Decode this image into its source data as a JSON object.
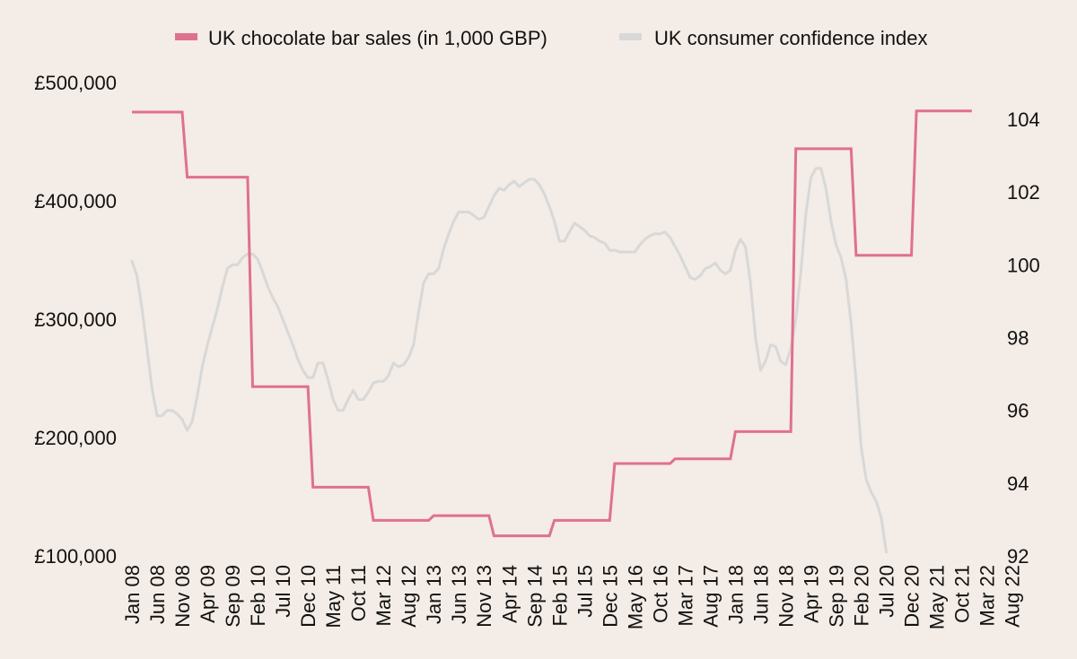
{
  "chart_data": {
    "type": "line",
    "title": "",
    "legend_position": "top-center",
    "grid": false,
    "x_range": [
      "Jan 08",
      "Aug 22"
    ],
    "x_tick_labels": [
      "Jan 08",
      "Jun 08",
      "Nov 08",
      "Apr 09",
      "Sep 09",
      "Feb 10",
      "Jul 10",
      "Dec 10",
      "May 11",
      "Oct 11",
      "Mar 12",
      "Aug 12",
      "Jan 13",
      "Jun 13",
      "Nov 13",
      "Apr 14",
      "Sep 14",
      "Feb 15",
      "Jul 15",
      "Dec 15",
      "May 16",
      "Oct 16",
      "Mar 17",
      "Aug 17",
      "Jan 18",
      "Jun 18",
      "Nov 18",
      "Apr 19",
      "Sep 19",
      "Feb 20",
      "Jul 20",
      "Dec 20",
      "May 21",
      "Oct 21",
      "Mar 22",
      "Aug 22"
    ],
    "y_left": {
      "label": "",
      "range": [
        100000,
        500000
      ],
      "ticks": [
        100000,
        200000,
        300000,
        400000,
        500000
      ],
      "tick_labels": [
        "£100,000",
        "£200,000",
        "£300,000",
        "£400,000",
        "£500,000"
      ]
    },
    "y_right": {
      "label": "",
      "range": [
        92,
        105
      ],
      "ticks": [
        92,
        94,
        96,
        98,
        100,
        102,
        104
      ],
      "tick_labels": [
        "92",
        "94",
        "96",
        "98",
        "100",
        "102",
        "104"
      ]
    },
    "series": [
      {
        "name": "UK chocolate bar sales (in 1,000 GBP)",
        "axis": "left",
        "color": "#e07090",
        "shape": "step",
        "points": [
          {
            "x": 0,
            "y": 475000
          },
          {
            "x": 10,
            "y": 475000
          },
          {
            "x": 11,
            "y": 420000
          },
          {
            "x": 23,
            "y": 420000
          },
          {
            "x": 24,
            "y": 243000
          },
          {
            "x": 35,
            "y": 243000
          },
          {
            "x": 36,
            "y": 158000
          },
          {
            "x": 47,
            "y": 158000
          },
          {
            "x": 48,
            "y": 130000
          },
          {
            "x": 59,
            "y": 130000
          },
          {
            "x": 60,
            "y": 134000
          },
          {
            "x": 71,
            "y": 134000
          },
          {
            "x": 72,
            "y": 117000
          },
          {
            "x": 83,
            "y": 117000
          },
          {
            "x": 84,
            "y": 130000
          },
          {
            "x": 95,
            "y": 130000
          },
          {
            "x": 96,
            "y": 178000
          },
          {
            "x": 107,
            "y": 178000
          },
          {
            "x": 108,
            "y": 182000
          },
          {
            "x": 119,
            "y": 182000
          },
          {
            "x": 120,
            "y": 205000
          },
          {
            "x": 131,
            "y": 205000
          },
          {
            "x": 132,
            "y": 444000
          },
          {
            "x": 143,
            "y": 444000
          },
          {
            "x": 144,
            "y": 354000
          },
          {
            "x": 155,
            "y": 354000
          },
          {
            "x": 156,
            "y": 476000
          },
          {
            "x": 167,
            "y": 476000
          }
        ]
      },
      {
        "name": "UK consumer confidence index",
        "axis": "right",
        "color": "#d8d8d8",
        "shape": "line",
        "points": [
          {
            "x": 0,
            "y": 100.1
          },
          {
            "x": 1,
            "y": 99.7
          },
          {
            "x": 2,
            "y": 98.8
          },
          {
            "x": 3,
            "y": 97.7
          },
          {
            "x": 4,
            "y": 96.6
          },
          {
            "x": 5,
            "y": 95.85
          },
          {
            "x": 6,
            "y": 95.85
          },
          {
            "x": 7,
            "y": 96.0
          },
          {
            "x": 8,
            "y": 96.0
          },
          {
            "x": 9,
            "y": 95.9
          },
          {
            "x": 10,
            "y": 95.75
          },
          {
            "x": 11,
            "y": 95.45
          },
          {
            "x": 12,
            "y": 95.7
          },
          {
            "x": 13,
            "y": 96.4
          },
          {
            "x": 14,
            "y": 97.2
          },
          {
            "x": 15,
            "y": 97.8
          },
          {
            "x": 16,
            "y": 98.3
          },
          {
            "x": 17,
            "y": 98.8
          },
          {
            "x": 18,
            "y": 99.4
          },
          {
            "x": 19,
            "y": 99.9
          },
          {
            "x": 20,
            "y": 100.0
          },
          {
            "x": 21,
            "y": 100.0
          },
          {
            "x": 22,
            "y": 100.2
          },
          {
            "x": 23,
            "y": 100.3
          },
          {
            "x": 24,
            "y": 100.3
          },
          {
            "x": 25,
            "y": 100.15
          },
          {
            "x": 26,
            "y": 99.8
          },
          {
            "x": 27,
            "y": 99.4
          },
          {
            "x": 28,
            "y": 99.1
          },
          {
            "x": 29,
            "y": 98.85
          },
          {
            "x": 30,
            "y": 98.5
          },
          {
            "x": 31,
            "y": 98.15
          },
          {
            "x": 32,
            "y": 97.8
          },
          {
            "x": 33,
            "y": 97.4
          },
          {
            "x": 34,
            "y": 97.1
          },
          {
            "x": 35,
            "y": 96.9
          },
          {
            "x": 36,
            "y": 96.9
          },
          {
            "x": 37,
            "y": 97.3
          },
          {
            "x": 38,
            "y": 97.3
          },
          {
            "x": 39,
            "y": 96.85
          },
          {
            "x": 40,
            "y": 96.3
          },
          {
            "x": 41,
            "y": 96.0
          },
          {
            "x": 42,
            "y": 96.0
          },
          {
            "x": 43,
            "y": 96.3
          },
          {
            "x": 44,
            "y": 96.55
          },
          {
            "x": 45,
            "y": 96.3
          },
          {
            "x": 46,
            "y": 96.3
          },
          {
            "x": 47,
            "y": 96.5
          },
          {
            "x": 48,
            "y": 96.75
          },
          {
            "x": 49,
            "y": 96.8
          },
          {
            "x": 50,
            "y": 96.8
          },
          {
            "x": 51,
            "y": 96.95
          },
          {
            "x": 52,
            "y": 97.3
          },
          {
            "x": 53,
            "y": 97.2
          },
          {
            "x": 54,
            "y": 97.25
          },
          {
            "x": 55,
            "y": 97.45
          },
          {
            "x": 56,
            "y": 97.8
          },
          {
            "x": 57,
            "y": 98.7
          },
          {
            "x": 58,
            "y": 99.5
          },
          {
            "x": 59,
            "y": 99.75
          },
          {
            "x": 60,
            "y": 99.75
          },
          {
            "x": 61,
            "y": 99.9
          },
          {
            "x": 62,
            "y": 100.45
          },
          {
            "x": 63,
            "y": 100.85
          },
          {
            "x": 64,
            "y": 101.2
          },
          {
            "x": 65,
            "y": 101.45
          },
          {
            "x": 66,
            "y": 101.45
          },
          {
            "x": 67,
            "y": 101.45
          },
          {
            "x": 68,
            "y": 101.35
          },
          {
            "x": 69,
            "y": 101.25
          },
          {
            "x": 70,
            "y": 101.3
          },
          {
            "x": 71,
            "y": 101.6
          },
          {
            "x": 72,
            "y": 101.9
          },
          {
            "x": 73,
            "y": 102.1
          },
          {
            "x": 74,
            "y": 102.05
          },
          {
            "x": 75,
            "y": 102.2
          },
          {
            "x": 76,
            "y": 102.3
          },
          {
            "x": 77,
            "y": 102.15
          },
          {
            "x": 78,
            "y": 102.25
          },
          {
            "x": 79,
            "y": 102.35
          },
          {
            "x": 80,
            "y": 102.35
          },
          {
            "x": 81,
            "y": 102.2
          },
          {
            "x": 82,
            "y": 101.95
          },
          {
            "x": 83,
            "y": 101.6
          },
          {
            "x": 84,
            "y": 101.2
          },
          {
            "x": 85,
            "y": 100.65
          },
          {
            "x": 86,
            "y": 100.65
          },
          {
            "x": 87,
            "y": 100.9
          },
          {
            "x": 88,
            "y": 101.15
          },
          {
            "x": 89,
            "y": 101.05
          },
          {
            "x": 90,
            "y": 100.95
          },
          {
            "x": 91,
            "y": 100.8
          },
          {
            "x": 92,
            "y": 100.75
          },
          {
            "x": 93,
            "y": 100.65
          },
          {
            "x": 94,
            "y": 100.6
          },
          {
            "x": 95,
            "y": 100.4
          },
          {
            "x": 96,
            "y": 100.4
          },
          {
            "x": 97,
            "y": 100.35
          },
          {
            "x": 98,
            "y": 100.35
          },
          {
            "x": 99,
            "y": 100.35
          },
          {
            "x": 100,
            "y": 100.35
          },
          {
            "x": 101,
            "y": 100.55
          },
          {
            "x": 102,
            "y": 100.7
          },
          {
            "x": 103,
            "y": 100.8
          },
          {
            "x": 104,
            "y": 100.85
          },
          {
            "x": 105,
            "y": 100.85
          },
          {
            "x": 106,
            "y": 100.9
          },
          {
            "x": 107,
            "y": 100.75
          },
          {
            "x": 108,
            "y": 100.5
          },
          {
            "x": 109,
            "y": 100.25
          },
          {
            "x": 110,
            "y": 99.95
          },
          {
            "x": 111,
            "y": 99.65
          },
          {
            "x": 112,
            "y": 99.6
          },
          {
            "x": 113,
            "y": 99.7
          },
          {
            "x": 114,
            "y": 99.9
          },
          {
            "x": 115,
            "y": 99.95
          },
          {
            "x": 116,
            "y": 100.05
          },
          {
            "x": 117,
            "y": 99.85
          },
          {
            "x": 118,
            "y": 99.75
          },
          {
            "x": 119,
            "y": 99.85
          },
          {
            "x": 120,
            "y": 100.4
          },
          {
            "x": 121,
            "y": 100.7
          },
          {
            "x": 122,
            "y": 100.5
          },
          {
            "x": 123,
            "y": 99.5
          },
          {
            "x": 124,
            "y": 98.0
          },
          {
            "x": 125,
            "y": 97.1
          },
          {
            "x": 126,
            "y": 97.35
          },
          {
            "x": 127,
            "y": 97.8
          },
          {
            "x": 128,
            "y": 97.75
          },
          {
            "x": 129,
            "y": 97.35
          },
          {
            "x": 130,
            "y": 97.25
          },
          {
            "x": 131,
            "y": 97.7
          },
          {
            "x": 132,
            "y": 98.5
          },
          {
            "x": 133,
            "y": 99.8
          },
          {
            "x": 134,
            "y": 101.4
          },
          {
            "x": 135,
            "y": 102.4
          },
          {
            "x": 136,
            "y": 102.65
          },
          {
            "x": 137,
            "y": 102.65
          },
          {
            "x": 138,
            "y": 102.1
          },
          {
            "x": 139,
            "y": 101.2
          },
          {
            "x": 140,
            "y": 100.55
          },
          {
            "x": 141,
            "y": 100.2
          },
          {
            "x": 142,
            "y": 99.6
          },
          {
            "x": 143,
            "y": 98.4
          },
          {
            "x": 144,
            "y": 96.8
          },
          {
            "x": 145,
            "y": 95.0
          },
          {
            "x": 146,
            "y": 94.1
          },
          {
            "x": 147,
            "y": 93.75
          },
          {
            "x": 148,
            "y": 93.5
          },
          {
            "x": 149,
            "y": 93.05
          },
          {
            "x": 150,
            "y": 92.1
          }
        ]
      }
    ]
  }
}
